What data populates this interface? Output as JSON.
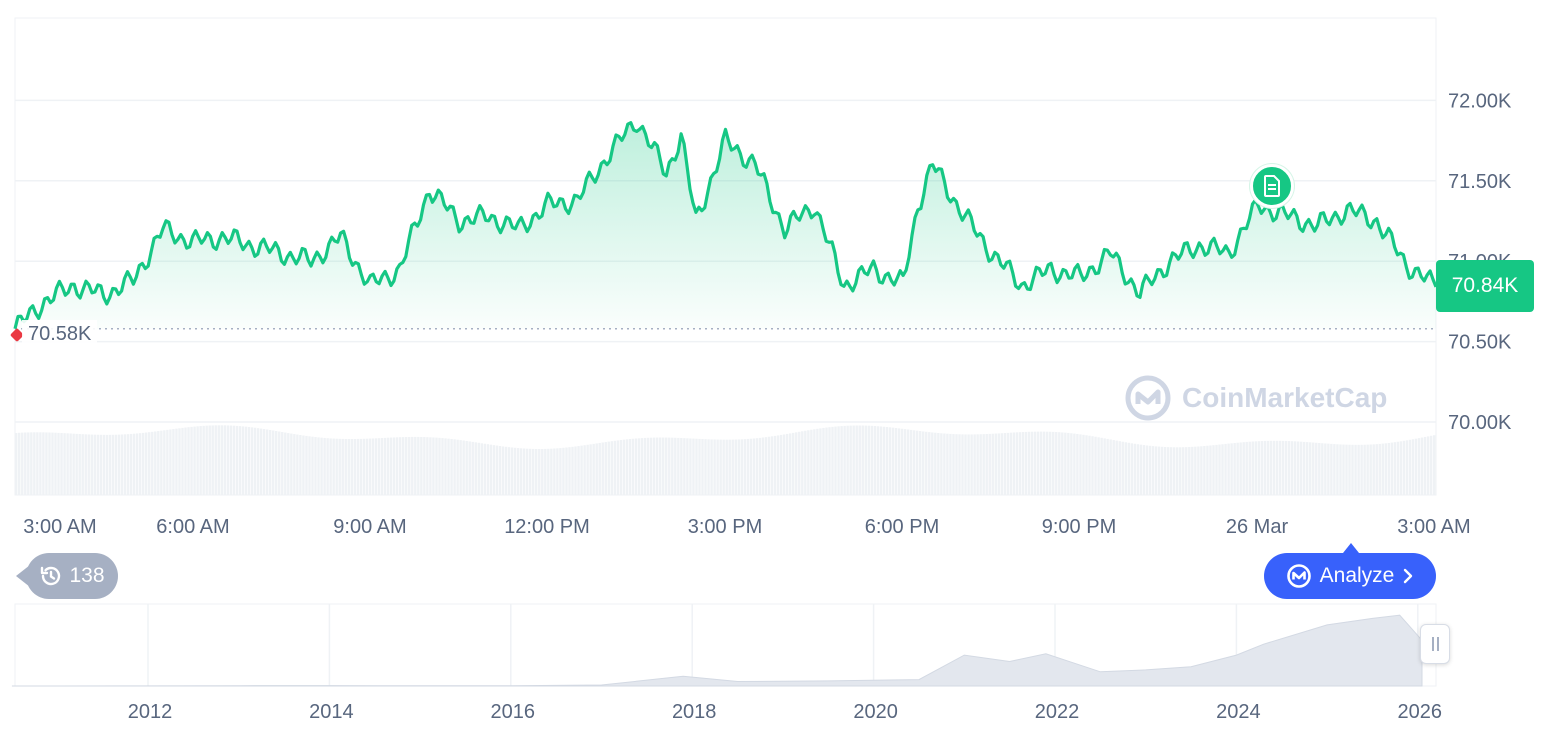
{
  "chart_data": [
    {
      "type": "line",
      "title": "",
      "xlabel": "",
      "ylabel": "",
      "x_ticks": [
        "3:00 AM",
        "6:00 AM",
        "9:00 AM",
        "12:00 PM",
        "3:00 PM",
        "6:00 PM",
        "9:00 PM",
        "26 Mar",
        "3:00 AM"
      ],
      "y_ticks": [
        "72.00K",
        "71.50K",
        "71.00K",
        "70.50K",
        "70.00K"
      ],
      "ylim": [
        69.5,
        72.5
      ],
      "grid": true,
      "current_price": "70.84K",
      "open_price": "70.58K",
      "x_hours": [
        0,
        0.5,
        1,
        1.5,
        2,
        2.5,
        3,
        3.5,
        4,
        4.5,
        5,
        5.5,
        6,
        6.5,
        7,
        7.5,
        8,
        8.5,
        9,
        9.5,
        10,
        10.5,
        11,
        11.25,
        11.5,
        12,
        12.5,
        13,
        13.5,
        14,
        14.5,
        15,
        15.25,
        15.5,
        16,
        16.5,
        17,
        17.5,
        18,
        18.5,
        19,
        19.5,
        20,
        20.5,
        21,
        21.5,
        22,
        22.5,
        23,
        23.5,
        24
      ],
      "values": [
        70.58,
        70.75,
        70.85,
        70.79,
        70.88,
        71.2,
        71.12,
        71.15,
        71.1,
        71.05,
        71.0,
        71.15,
        70.85,
        70.95,
        71.45,
        71.25,
        71.28,
        71.2,
        71.35,
        71.38,
        71.65,
        71.88,
        71.55,
        71.78,
        71.25,
        71.75,
        71.6,
        71.2,
        71.35,
        70.85,
        70.95,
        70.86,
        71.35,
        71.6,
        71.3,
        71.05,
        70.85,
        70.95,
        70.9,
        71.05,
        70.8,
        71.0,
        71.1,
        71.05,
        71.35,
        71.28,
        71.22,
        71.32,
        71.25,
        70.98,
        70.84
      ],
      "volume_bars": true
    },
    {
      "type": "area",
      "title": "",
      "x_ticks": [
        "2012",
        "2014",
        "2016",
        "2018",
        "2020",
        "2022",
        "2024",
        "2026"
      ],
      "x": [
        2010.5,
        2011,
        2012,
        2013,
        2014,
        2015,
        2016,
        2017,
        2017.9,
        2018.5,
        2019.5,
        2020.5,
        2021,
        2021.5,
        2021.9,
        2022.5,
        2023,
        2023.5,
        2024,
        2024.3,
        2025,
        2025.5,
        2025.8,
        2026.2
      ],
      "values": [
        0,
        0.05,
        0.1,
        0.5,
        0.6,
        0.3,
        0.5,
        1.5,
        15,
        7,
        8,
        10,
        48,
        38,
        50,
        22,
        25,
        30,
        48,
        65,
        95,
        105,
        110,
        71
      ],
      "brush_range": "right edge"
    }
  ],
  "watermark": {
    "text": "CoinMarketCap"
  },
  "history_button": {
    "count": "138",
    "icon": "history-icon"
  },
  "analyze_button": {
    "label": "Analyze",
    "icon": "cmc-logo-icon"
  },
  "news_marker": {
    "icon": "document-icon"
  },
  "colors": {
    "line": "#16c784",
    "fill": "#16c784",
    "grid": "#eff2f5",
    "axis_text": "#58667e",
    "analyze": "#3861fb",
    "history": "#a6b0c3",
    "open_marker": "#ea3943",
    "volume": "#eff2f5",
    "overview_area": "#e3e7ee"
  }
}
